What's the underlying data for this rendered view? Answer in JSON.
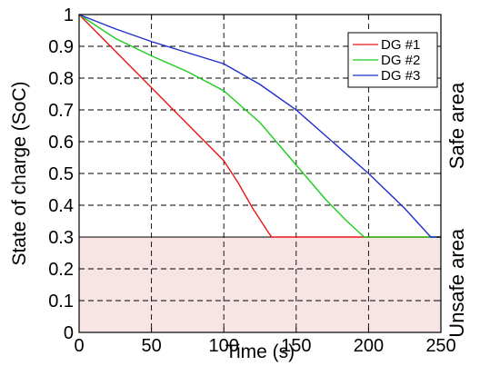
{
  "chart_data": {
    "type": "line",
    "xlabel": "Time (s)",
    "ylabel": "State of charge (SoC)",
    "xlim": [
      0,
      250
    ],
    "ylim": [
      0,
      1
    ],
    "x_ticks": [
      "0",
      "50",
      "100",
      "150",
      "200",
      "250"
    ],
    "y_ticks": [
      "0",
      "0.1",
      "0.2",
      "0.3",
      "0.4",
      "0.5",
      "0.6",
      "0.7",
      "0.8",
      "0.9",
      "1"
    ],
    "grid": true,
    "legend_position": "top-right",
    "unsafe_threshold": 0.3,
    "regions": {
      "safe": "Safe area",
      "unsafe": "Unsafe area"
    },
    "series": [
      {
        "name": "DG #1",
        "color": "#e8161a",
        "x": [
          0,
          25,
          50,
          75,
          100,
          110,
          120,
          130,
          133,
          250
        ],
        "y": [
          1.0,
          0.885,
          0.77,
          0.655,
          0.54,
          0.47,
          0.39,
          0.32,
          0.3,
          0.3
        ]
      },
      {
        "name": "DG #2",
        "color": "#1fcc1f",
        "x": [
          0,
          25,
          50,
          75,
          100,
          125,
          140,
          155,
          170,
          185,
          197,
          250
        ],
        "y": [
          1.0,
          0.925,
          0.87,
          0.82,
          0.76,
          0.66,
          0.58,
          0.5,
          0.42,
          0.35,
          0.3,
          0.3
        ]
      },
      {
        "name": "DG #3",
        "color": "#1f2ecc",
        "x": [
          0,
          25,
          50,
          75,
          100,
          125,
          150,
          175,
          200,
          225,
          243,
          250
        ],
        "y": [
          1.0,
          0.955,
          0.915,
          0.88,
          0.845,
          0.78,
          0.7,
          0.6,
          0.5,
          0.39,
          0.3,
          0.3
        ]
      }
    ]
  }
}
